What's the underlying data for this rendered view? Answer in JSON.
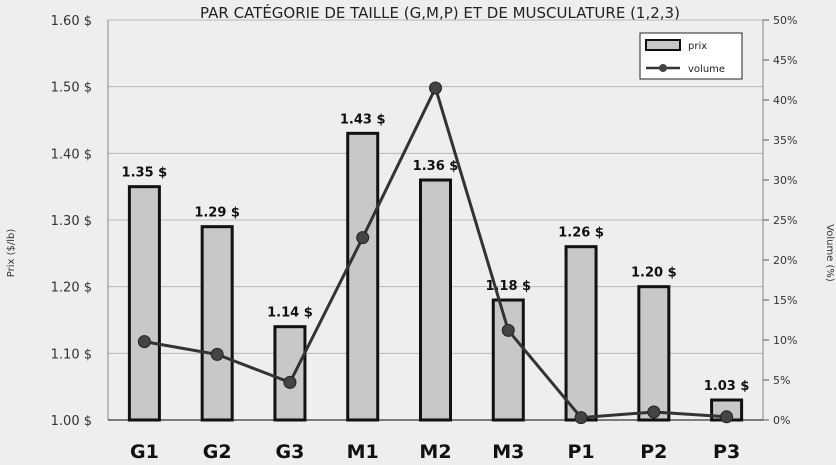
{
  "chart_data": {
    "type": "bar",
    "title": "PAR CATÉGORIE DE TAILLE (G,M,P) ET DE MUSCULATURE (1,2,3)",
    "categories": [
      "G1",
      "G2",
      "G3",
      "M1",
      "M2",
      "M3",
      "P1",
      "P2",
      "P3"
    ],
    "series": [
      {
        "name": "prix",
        "type": "bar",
        "axis": "left",
        "values": [
          1.35,
          1.29,
          1.14,
          1.43,
          1.36,
          1.18,
          1.26,
          1.2,
          1.03
        ],
        "labels": [
          "1.35 $",
          "1.29 $",
          "1.14 $",
          "1.43 $",
          "1.36 $",
          "1.18 $",
          "1.26 $",
          "1.20 $",
          "1.03 $"
        ]
      },
      {
        "name": "volume",
        "type": "line",
        "axis": "right",
        "values": [
          9.8,
          8.2,
          4.7,
          22.8,
          41.5,
          11.2,
          0.3,
          1.0,
          0.4
        ]
      }
    ],
    "ylabel": "Prix ($/lb)",
    "y2label": "Volume (%)",
    "ylim": [
      1.0,
      1.6
    ],
    "y2lim": [
      0,
      50
    ],
    "yticks": [
      "1.00 $",
      "1.10 $",
      "1.20 $",
      "1.30 $",
      "1.40 $",
      "1.50 $",
      "1.60 $"
    ],
    "y2ticks": [
      "0%",
      "5%",
      "10%",
      "15%",
      "20%",
      "25%",
      "30%",
      "35%",
      "40%",
      "45%",
      "50%"
    ],
    "grid": true,
    "legend_position": "top-right"
  },
  "colors": {
    "bar_fill": "#c8c8c8",
    "bar_stroke": "#111111",
    "line": "#333333",
    "marker": "#444444",
    "grid": "#b8b8b8",
    "background": "#eeeeec"
  }
}
